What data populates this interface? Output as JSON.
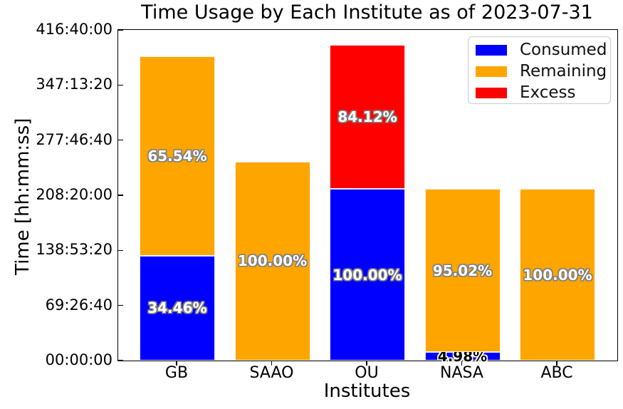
{
  "chart_data": {
    "type": "bar",
    "stacked": true,
    "title": "Time Usage by Each Institute as of 2023-07-31",
    "xlabel": "Institutes",
    "ylabel": "Time [hh:mm:ss]",
    "categories": [
      "GB",
      "SAAO",
      "OU",
      "NASA",
      "ABC"
    ],
    "ylim_seconds": [
      0,
      1500000
    ],
    "y_ticks": [
      {
        "seconds": 0,
        "label": "00:00:00"
      },
      {
        "seconds": 250000,
        "label": "69:26:40"
      },
      {
        "seconds": 500000,
        "label": "138:53:20"
      },
      {
        "seconds": 750000,
        "label": "208:20:00"
      },
      {
        "seconds": 1000000,
        "label": "277:46:40"
      },
      {
        "seconds": 1250000,
        "label": "347:13:20"
      },
      {
        "seconds": 1500000,
        "label": "416:40:00"
      }
    ],
    "grid": false,
    "legend_position": "upper right",
    "legend": [
      {
        "label": "Consumed",
        "color": "#0000ff"
      },
      {
        "label": "Remaining",
        "color": "#ffa500"
      },
      {
        "label": "Excess",
        "color": "#ff0000"
      }
    ],
    "series": [
      {
        "name": "Consumed",
        "color": "#0000ff",
        "values_seconds": [
          475700,
          0,
          777600,
          38700,
          0
        ],
        "bar_labels": [
          "34.46%",
          "",
          "100.00%",
          "4.98%",
          ""
        ]
      },
      {
        "name": "Remaining",
        "color": "#ffa500",
        "values_seconds": [
          904700,
          902000,
          0,
          738900,
          777600
        ],
        "bar_labels": [
          "65.54%",
          "100.00%",
          "",
          "95.02%",
          "100.00%"
        ]
      },
      {
        "name": "Excess",
        "color": "#ff0000",
        "values_seconds": [
          0,
          0,
          654100,
          0,
          0
        ],
        "bar_labels": [
          "",
          "",
          "84.12%",
          "",
          ""
        ]
      }
    ]
  }
}
